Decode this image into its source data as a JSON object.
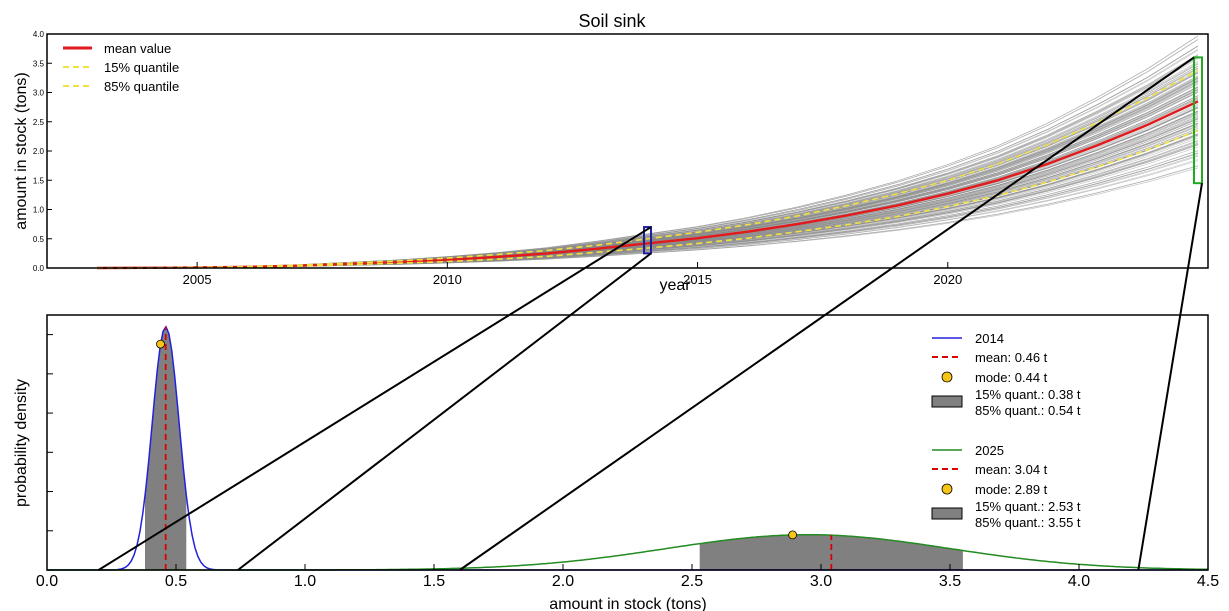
{
  "chart_data": [
    {
      "type": "line",
      "title": "Soil sink",
      "xlabel": "year",
      "ylabel": "amount in stock (tons)",
      "xlim": [
        2002,
        2025.2
      ],
      "ylim": [
        0,
        4.0
      ],
      "x_ticks": [
        2005,
        2010,
        2015,
        2020
      ],
      "y_ticks": [
        0.0,
        0.5,
        1.0,
        1.5,
        2.0,
        2.5,
        3.0,
        3.5,
        4.0
      ],
      "legend_position": "top-left",
      "series": [
        {
          "name": "mean value",
          "color": "#e31a1c",
          "style": "solid",
          "x": [
            2003,
            2004,
            2005,
            2006,
            2007,
            2008,
            2009,
            2010,
            2011,
            2012,
            2013,
            2014,
            2015,
            2016,
            2017,
            2018,
            2019,
            2020,
            2021,
            2022,
            2023,
            2024,
            2025
          ],
          "y": [
            0,
            0.003,
            0.01,
            0.02,
            0.04,
            0.07,
            0.1,
            0.14,
            0.19,
            0.25,
            0.33,
            0.42,
            0.51,
            0.62,
            0.75,
            0.9,
            1.07,
            1.27,
            1.5,
            1.78,
            2.1,
            2.45,
            2.85
          ]
        },
        {
          "name": "15% quantile",
          "color": "#f0e040",
          "style": "dashed",
          "x": [
            2003,
            2004,
            2005,
            2006,
            2007,
            2008,
            2009,
            2010,
            2011,
            2012,
            2013,
            2014,
            2015,
            2016,
            2017,
            2018,
            2019,
            2020,
            2021,
            2022,
            2023,
            2024,
            2025
          ],
          "y": [
            0,
            0.002,
            0.008,
            0.016,
            0.032,
            0.056,
            0.08,
            0.11,
            0.15,
            0.2,
            0.27,
            0.34,
            0.42,
            0.51,
            0.62,
            0.74,
            0.88,
            1.05,
            1.24,
            1.47,
            1.73,
            2.02,
            2.35
          ]
        },
        {
          "name": "85% quantile",
          "color": "#f0e040",
          "style": "dashed",
          "x": [
            2003,
            2004,
            2005,
            2006,
            2007,
            2008,
            2009,
            2010,
            2011,
            2012,
            2013,
            2014,
            2015,
            2016,
            2017,
            2018,
            2019,
            2020,
            2021,
            2022,
            2023,
            2024,
            2025
          ],
          "y": [
            0,
            0.004,
            0.012,
            0.024,
            0.048,
            0.084,
            0.12,
            0.17,
            0.23,
            0.3,
            0.39,
            0.5,
            0.61,
            0.74,
            0.89,
            1.07,
            1.27,
            1.5,
            1.78,
            2.11,
            2.49,
            2.91,
            3.38
          ]
        }
      ],
      "ensemble": {
        "color": "#888888",
        "count": 140,
        "end_min": 1.55,
        "end_max": 4.0,
        "x": [
          2003,
          2004,
          2005,
          2006,
          2007,
          2008,
          2009,
          2010,
          2011,
          2012,
          2013,
          2014,
          2015,
          2016,
          2017,
          2018,
          2019,
          2020,
          2021,
          2022,
          2023,
          2024,
          2025
        ],
        "shape": [
          0,
          0.001,
          0.0035,
          0.007,
          0.014,
          0.0246,
          0.0351,
          0.0491,
          0.0667,
          0.0877,
          0.1158,
          0.1474,
          0.1789,
          0.2175,
          0.2632,
          0.3158,
          0.3754,
          0.4456,
          0.5263,
          0.6246,
          0.7368,
          0.8596,
          1.0
        ]
      },
      "highlight_boxes": [
        {
          "x": 2014,
          "ymin": 0.25,
          "ymax": 0.7,
          "color": "#1f1fa0"
        },
        {
          "x": 2025,
          "ymin": 1.45,
          "ymax": 3.6,
          "color": "#1faa1f"
        }
      ]
    },
    {
      "type": "line",
      "xlabel": "amount in stock (tons)",
      "ylabel": "probability density",
      "xlim": [
        0.0,
        4.5
      ],
      "ylim": [
        0,
        6.5
      ],
      "x_ticks": [
        0.0,
        0.5,
        1.0,
        1.5,
        2.0,
        2.5,
        3.0,
        3.5,
        4.0,
        4.5
      ],
      "x_tick_labels": [
        "0.0",
        "0.5",
        "1.0",
        "1.5",
        "2.0",
        "2.5",
        "3.0",
        "3.5",
        "4.0",
        "4.5"
      ],
      "y_tick_values": [
        1,
        2,
        3,
        4,
        5,
        6
      ],
      "legend_position": "right",
      "series": [
        {
          "name": "2014",
          "color": "#2222dd",
          "center": 0.46,
          "sigma": 0.052,
          "peak": 6.2,
          "mean": 0.46,
          "mode": 0.44,
          "q15": 0.38,
          "q85": 0.54
        },
        {
          "name": "2025",
          "color": "#228b22",
          "center": 2.95,
          "sigma": 0.55,
          "peak": 0.9,
          "mean": 3.04,
          "mode": 2.89,
          "q15": 2.53,
          "q85": 3.55
        }
      ],
      "legend": [
        {
          "kind": "line",
          "color": "#2222dd",
          "text": "2014"
        },
        {
          "kind": "dash",
          "color": "#dd0000",
          "text": "mean: 0.46 t"
        },
        {
          "kind": "dot",
          "color": "#f5c518",
          "text": "mode: 0.44 t"
        },
        {
          "kind": "box",
          "color": "#808080",
          "text": "15% quant.: 0.38 t",
          "text2": "85% quant.: 0.54 t"
        },
        {
          "kind": "line",
          "color": "#228b22",
          "text": "2025"
        },
        {
          "kind": "dash",
          "color": "#dd0000",
          "text": "mean: 3.04 t"
        },
        {
          "kind": "dot",
          "color": "#f5c518",
          "text": "mode: 2.89 t"
        },
        {
          "kind": "box",
          "color": "#808080",
          "text": "15% quant.: 2.53 t",
          "text2": "85% quant.: 3.55 t"
        }
      ]
    }
  ]
}
